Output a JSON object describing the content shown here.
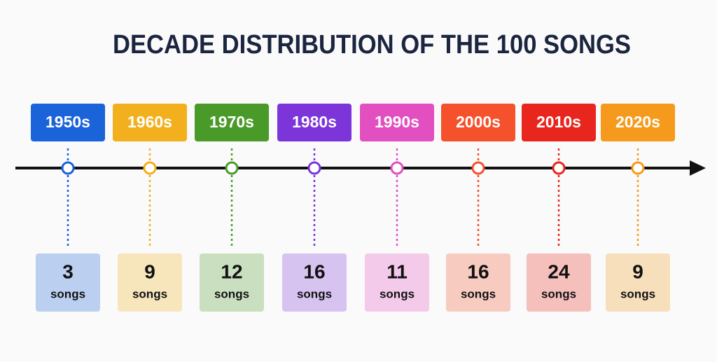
{
  "title": "DECADE DISTRIBUTION OF THE 100 SONGS",
  "unit": "songs",
  "decades": [
    {
      "label": "1950s",
      "count": 3,
      "color": "#1a63d8"
    },
    {
      "label": "1960s",
      "count": 9,
      "color": "#f2b01e"
    },
    {
      "label": "1970s",
      "count": 12,
      "color": "#4a9a2a"
    },
    {
      "label": "1980s",
      "count": 16,
      "color": "#7b35d9"
    },
    {
      "label": "1990s",
      "count": 11,
      "color": "#e24fc0"
    },
    {
      "label": "2000s",
      "count": 16,
      "color": "#f4512c"
    },
    {
      "label": "2010s",
      "count": 24,
      "color": "#e8261e"
    },
    {
      "label": "2020s",
      "count": 9,
      "color": "#f59a1c"
    }
  ]
}
